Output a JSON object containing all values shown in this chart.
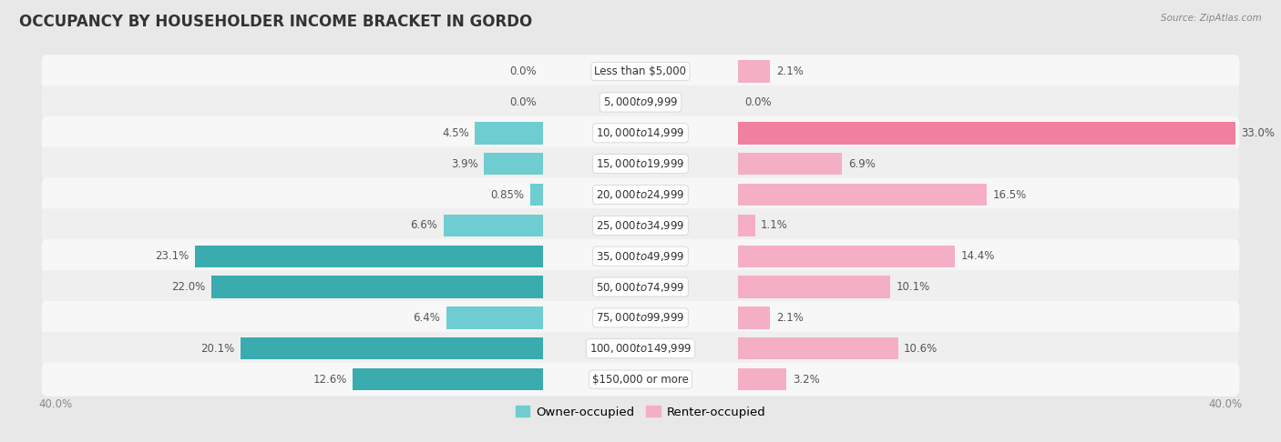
{
  "title": "OCCUPANCY BY HOUSEHOLDER INCOME BRACKET IN GORDO",
  "source": "Source: ZipAtlas.com",
  "categories": [
    "Less than $5,000",
    "$5,000 to $9,999",
    "$10,000 to $14,999",
    "$15,000 to $19,999",
    "$20,000 to $24,999",
    "$25,000 to $34,999",
    "$35,000 to $49,999",
    "$50,000 to $74,999",
    "$75,000 to $99,999",
    "$100,000 to $149,999",
    "$150,000 or more"
  ],
  "owner_values": [
    0.0,
    0.0,
    4.5,
    3.9,
    0.85,
    6.6,
    23.1,
    22.0,
    6.4,
    20.1,
    12.6
  ],
  "renter_values": [
    2.1,
    0.0,
    33.0,
    6.9,
    16.5,
    1.1,
    14.4,
    10.1,
    2.1,
    10.6,
    3.2
  ],
  "owner_color_light": "#6ecdd0",
  "owner_color_dark": "#3aabaf",
  "renter_color_light": "#f5afc5",
  "renter_color_dark": "#f07fa0",
  "axis_max": 40.0,
  "bg_color": "#e8e8e8",
  "row_odd_color": "#f7f7f7",
  "row_even_color": "#efefef",
  "label_fontsize": 8.5,
  "title_fontsize": 12,
  "legend_fontsize": 9.5,
  "axis_label_fontsize": 8.5,
  "value_label_color": "#555555",
  "category_label_color": "#333333"
}
